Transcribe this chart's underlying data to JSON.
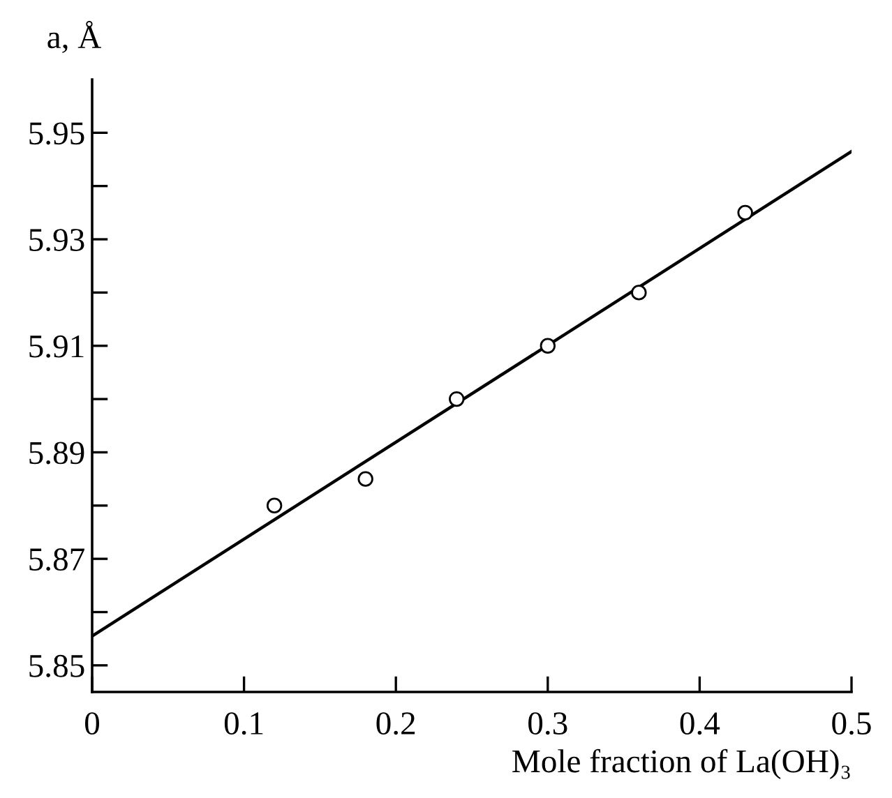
{
  "chart_data": {
    "type": "scatter",
    "xlabel": "Mole fraction of La(OH)₃",
    "ylabel": "a, Å",
    "x": [
      0.12,
      0.18,
      0.24,
      0.3,
      0.36,
      0.43
    ],
    "series": [
      {
        "color": "#000000",
        "marker": "circle",
        "values": [
          5.88,
          5.885,
          5.9,
          5.91,
          5.92,
          5.935
        ]
      },
      {
        "type": "line",
        "color": "#000000",
        "marker": "none",
        "line_style": "solid",
        "x": [
          0,
          0.5
        ],
        "values": [
          5.8555,
          5.9465
        ]
      }
    ],
    "xlim": [
      0,
      0.5
    ],
    "ylim": [
      5.845,
      5.96
    ],
    "xticks": [
      0,
      0.1,
      0.2,
      0.3,
      0.4,
      0.5
    ],
    "yticks": [
      5.85,
      {
        "value": 5.86,
        "label": null
      },
      5.87,
      {
        "value": 5.88,
        "label": null
      },
      5.89,
      {
        "value": 5.9,
        "label": null
      },
      5.91,
      {
        "value": 5.92,
        "label": null
      },
      5.93,
      {
        "value": 5.94,
        "label": null
      },
      5.95
    ],
    "grid": false,
    "legend": false
  }
}
